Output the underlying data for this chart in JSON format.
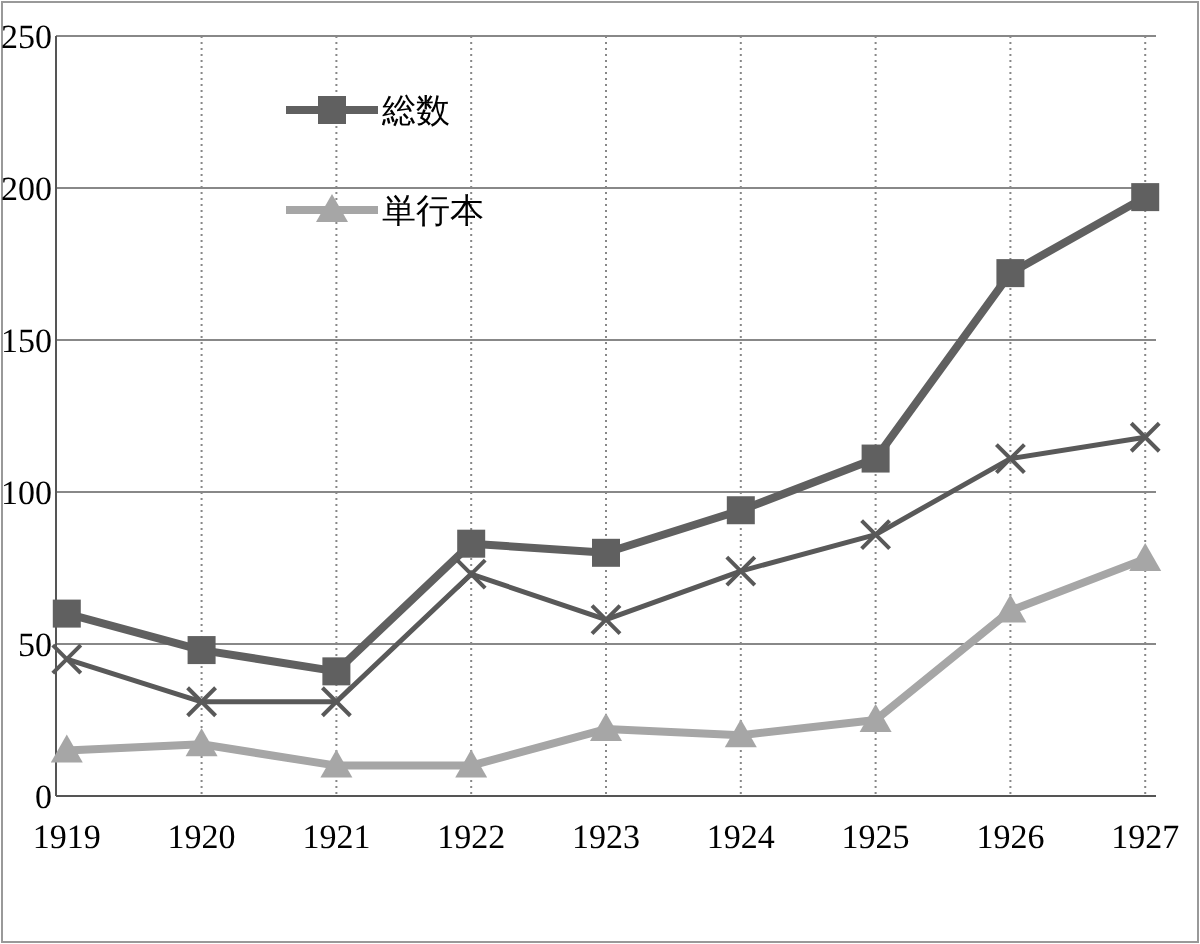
{
  "chart_data": {
    "type": "line",
    "categories": [
      "1919",
      "1920",
      "1921",
      "1922",
      "1923",
      "1924",
      "1925",
      "1926",
      "1927"
    ],
    "series": [
      {
        "name": "総数",
        "color": "#606060",
        "marker": "square",
        "values": [
          60,
          48,
          41,
          83,
          80,
          94,
          111,
          172,
          197
        ]
      },
      {
        "name": "単行本",
        "color": "#a6a6a6",
        "marker": "triangle",
        "values": [
          15,
          17,
          10,
          10,
          22,
          20,
          25,
          61,
          78
        ]
      },
      {
        "color": "#595959",
        "marker": "cross",
        "values": [
          45,
          31,
          31,
          73,
          58,
          74,
          86,
          111,
          118
        ]
      }
    ],
    "ylim": [
      0,
      250
    ],
    "yticks": [
      0,
      50,
      100,
      150,
      200,
      250
    ],
    "grid": true,
    "legend": "top left"
  }
}
